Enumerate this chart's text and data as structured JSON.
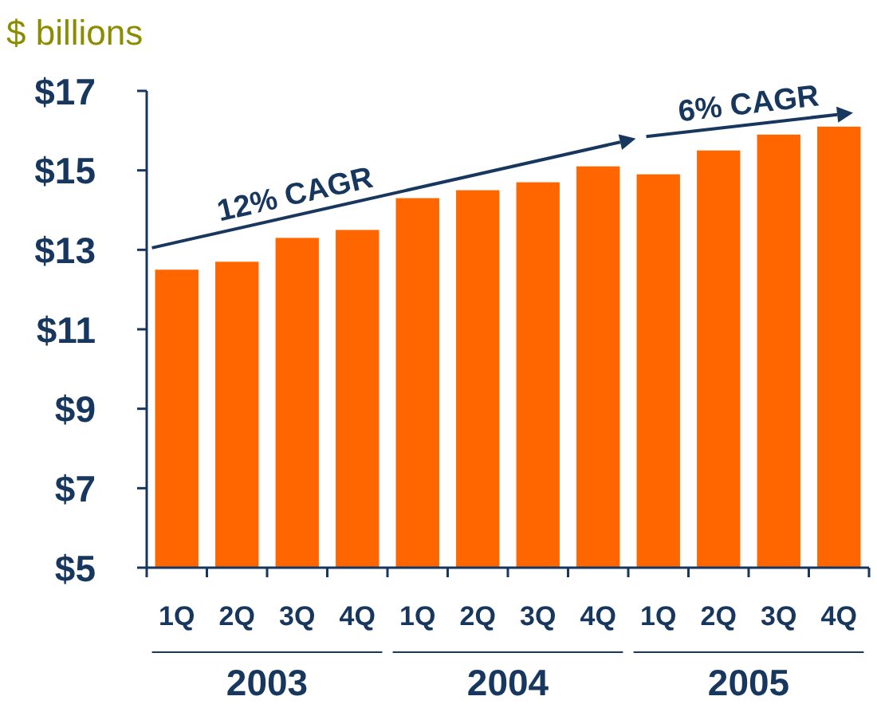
{
  "chart_data": {
    "type": "bar",
    "title": "$ billions",
    "categories": [
      "1Q",
      "2Q",
      "3Q",
      "4Q",
      "1Q",
      "2Q",
      "3Q",
      "4Q",
      "1Q",
      "2Q",
      "3Q",
      "4Q"
    ],
    "values": [
      12.5,
      12.7,
      13.3,
      13.5,
      14.3,
      14.5,
      14.7,
      15.1,
      14.9,
      15.5,
      15.9,
      16.1
    ],
    "color": "#ff6600",
    "ylim": [
      5,
      17
    ],
    "yticks": [
      {
        "value": 5,
        "label": "$5"
      },
      {
        "value": 7,
        "label": "$7"
      },
      {
        "value": 9,
        "label": "$9"
      },
      {
        "value": 11,
        "label": "$11"
      },
      {
        "value": 13,
        "label": "$13"
      },
      {
        "value": 15,
        "label": "$15"
      },
      {
        "value": 17,
        "label": "$17"
      }
    ],
    "annotations": [
      "12% CAGR",
      "6% CAGR",
      "2003",
      "2004",
      "2005"
    ]
  }
}
